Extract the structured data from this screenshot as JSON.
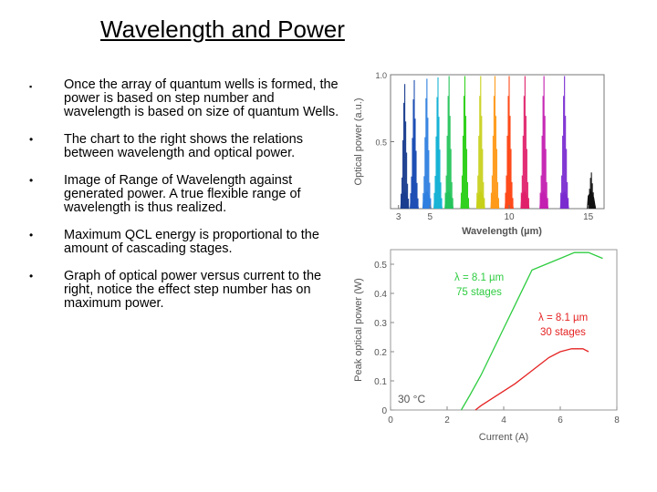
{
  "slide": {
    "title": "Wavelength and Power",
    "bullets": [
      {
        "marker": "▪",
        "text": "Once the array of quantum wells is formed, the power is based on step number and wavelength is based on size of quantum Wells."
      },
      {
        "marker": "•",
        "text": "The chart to the right shows the relations between wavelength and optical power."
      },
      {
        "marker": "•",
        "text": "Image of Range of Wavelength against generated power.  A true flexible range of wavelength is thus realized."
      },
      {
        "marker": "•",
        "text": "Maximum QCL energy is proportional to the amount of cascading stages."
      },
      {
        "marker": "•",
        "text": "Graph of optical power versus current to the right, notice the effect step number has on maximum power."
      }
    ]
  },
  "chart_data": [
    {
      "type": "line",
      "xlabel": "Wavelength  (µm)",
      "ylabel": "Optical power  (a.u.)",
      "xlim": [
        2.5,
        16
      ],
      "ylim": [
        0,
        1.0
      ],
      "x_ticks": [
        3,
        5,
        10,
        15
      ],
      "y_ticks": [
        0.5,
        1.0
      ],
      "spectra": [
        {
          "center": 3.4,
          "peak": 0.93,
          "color": "#1a3d8f"
        },
        {
          "center": 4.0,
          "peak": 0.96,
          "color": "#1f4fb5"
        },
        {
          "center": 4.8,
          "peak": 0.97,
          "color": "#2f7fe0"
        },
        {
          "center": 5.5,
          "peak": 0.98,
          "color": "#19b3d6"
        },
        {
          "center": 6.2,
          "peak": 0.99,
          "color": "#24c45a"
        },
        {
          "center": 7.2,
          "peak": 0.99,
          "color": "#32d11f"
        },
        {
          "center": 8.2,
          "peak": 0.99,
          "color": "#c8d11a"
        },
        {
          "center": 9.1,
          "peak": 0.99,
          "color": "#ff9a1a"
        },
        {
          "center": 10.0,
          "peak": 0.99,
          "color": "#ff4a1a"
        },
        {
          "center": 11.0,
          "peak": 0.99,
          "color": "#e0206a"
        },
        {
          "center": 12.2,
          "peak": 0.99,
          "color": "#c31fb0"
        },
        {
          "center": 13.5,
          "peak": 0.99,
          "color": "#7a2bd0"
        },
        {
          "center": 15.2,
          "peak": 0.27,
          "color": "#111111"
        }
      ]
    },
    {
      "type": "line",
      "xlabel": "Current  (A)",
      "ylabel": "Peak optical power  (W)",
      "xlim": [
        0,
        8
      ],
      "ylim": [
        0,
        0.55
      ],
      "x_ticks": [
        0,
        2,
        4,
        6,
        8
      ],
      "y_ticks": [
        0,
        0.1,
        0.2,
        0.3,
        0.4,
        0.5
      ],
      "annotation": "30 °C",
      "series": [
        {
          "name_line1": "λ = 8.1 µm",
          "name_line2": "75 stages",
          "color": "#2ecc40",
          "x": [
            2.5,
            2.8,
            3.2,
            3.6,
            4.0,
            4.4,
            4.8,
            5.0,
            5.5,
            6.0,
            6.5,
            7.0,
            7.5
          ],
          "y": [
            0.0,
            0.05,
            0.12,
            0.2,
            0.28,
            0.36,
            0.44,
            0.48,
            0.5,
            0.52,
            0.54,
            0.54,
            0.52
          ]
        },
        {
          "name_line1": "λ = 8.1 µm",
          "name_line2": "30 stages",
          "color": "#e52222",
          "x": [
            3.0,
            3.2,
            3.6,
            4.0,
            4.4,
            4.8,
            5.2,
            5.6,
            6.0,
            6.4,
            6.8,
            7.0
          ],
          "y": [
            0.0,
            0.015,
            0.04,
            0.065,
            0.09,
            0.12,
            0.15,
            0.18,
            0.2,
            0.21,
            0.21,
            0.2
          ]
        }
      ]
    }
  ]
}
